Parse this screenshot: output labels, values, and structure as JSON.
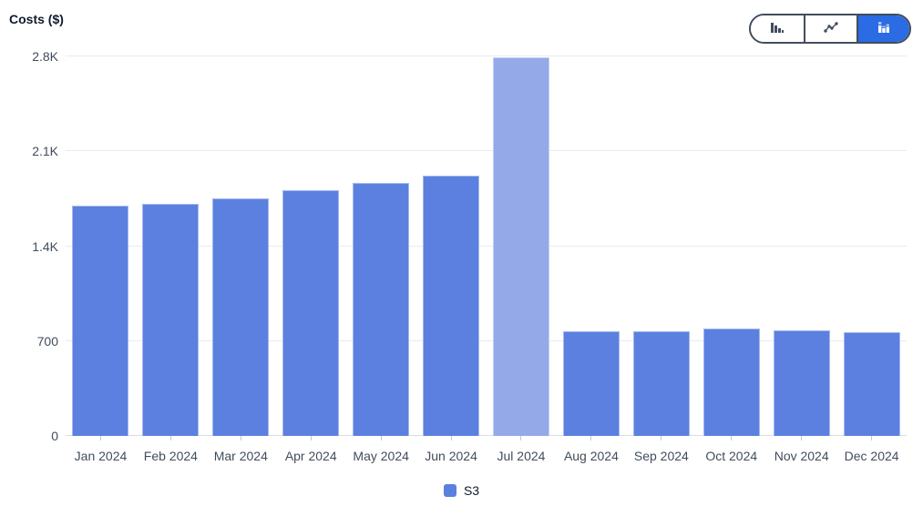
{
  "chart_data": {
    "type": "bar",
    "title": "Costs ($)",
    "xlabel": "",
    "ylabel": "Costs ($)",
    "categories": [
      "Jan 2024",
      "Feb 2024",
      "Mar 2024",
      "Apr 2024",
      "May 2024",
      "Jun 2024",
      "Jul 2024",
      "Aug 2024",
      "Sep 2024",
      "Oct 2024",
      "Nov 2024",
      "Dec 2024"
    ],
    "series": [
      {
        "name": "S3",
        "values": [
          1700,
          1715,
          1755,
          1815,
          1870,
          1920,
          2795,
          770,
          775,
          790,
          780,
          765
        ]
      }
    ],
    "highlighted_index": 6,
    "ylim": [
      0,
      2800
    ],
    "yticks": [
      {
        "value": 0,
        "label": "0"
      },
      {
        "value": 700,
        "label": "700"
      },
      {
        "value": 1400,
        "label": "1.4K"
      },
      {
        "value": 2100,
        "label": "2.1K"
      },
      {
        "value": 2800,
        "label": "2.8K"
      }
    ],
    "grid": true,
    "legend_position": "bottom"
  },
  "toolbar": {
    "segments": [
      {
        "icon": "bar-chart-icon",
        "selected": false
      },
      {
        "icon": "line-chart-icon",
        "selected": false
      },
      {
        "icon": "stacked-bar-chart-icon",
        "selected": true
      }
    ]
  },
  "legend": {
    "items": [
      {
        "label": "S3",
        "color": "#5b80df"
      }
    ]
  },
  "colors": {
    "bar": "#5b80df",
    "bar_highlight": "#94aae8",
    "segment_selected_bg": "#2b6be3",
    "segment_icon": "#414d5c",
    "segment_icon_selected": "#ffffff",
    "gridline": "#e9ebee",
    "axis_text": "#414d5c",
    "title_text": "#0f1b2a"
  }
}
